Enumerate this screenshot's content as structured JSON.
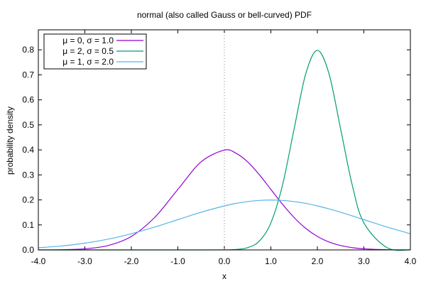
{
  "chart_data": {
    "type": "line",
    "title": "normal (also called Gauss or bell-curved) PDF",
    "xlabel": "x",
    "ylabel": "probability density",
    "xlim": [
      -4.0,
      4.0
    ],
    "ylim": [
      0.0,
      0.88
    ],
    "xticks": [
      -4.0,
      -3.0,
      -2.0,
      -1.0,
      0.0,
      1.0,
      2.0,
      3.0,
      4.0
    ],
    "xtick_labels": [
      "-4.0",
      "-3.0",
      "-2.0",
      "-1.0",
      "0.0",
      "1.0",
      "2.0",
      "3.0",
      "4.0"
    ],
    "yticks": [
      0.0,
      0.1,
      0.2,
      0.3,
      0.4,
      0.5,
      0.6,
      0.7,
      0.8
    ],
    "ytick_labels": [
      "0.0",
      "0.1",
      "0.2",
      "0.3",
      "0.4",
      "0.5",
      "0.6",
      "0.7",
      "0.8"
    ],
    "grid": false,
    "legend_position": "top-left",
    "reference_line": {
      "x": 0.0,
      "style": "dotted"
    },
    "x": [
      -4.0,
      -3.5,
      -3.0,
      -2.5,
      -2.0,
      -1.5,
      -1.0,
      -0.5,
      0.0,
      0.25,
      0.5,
      0.75,
      1.0,
      1.25,
      1.5,
      1.75,
      2.0,
      2.25,
      2.5,
      2.75,
      3.0,
      3.5,
      4.0
    ],
    "series": [
      {
        "name": "μ = 0, σ = 1.0",
        "color": "#9400d3",
        "values": [
          0.0001,
          0.0009,
          0.0044,
          0.0175,
          0.054,
          0.1295,
          0.242,
          0.3521,
          0.3989,
          0.3867,
          0.3521,
          0.3011,
          0.242,
          0.1826,
          0.1295,
          0.0863,
          0.054,
          0.0317,
          0.0175,
          0.0091,
          0.0044,
          0.0009,
          0.0001
        ]
      },
      {
        "name": "μ = 2, σ = 0.5",
        "color": "#009e73",
        "values": [
          0.0,
          0.0,
          0.0,
          0.0,
          0.0,
          0.0,
          0.0,
          0.0,
          0.0003,
          0.0017,
          0.0089,
          0.035,
          0.108,
          0.259,
          0.4839,
          0.7041,
          0.7979,
          0.7041,
          0.4839,
          0.259,
          0.108,
          0.0089,
          0.0003
        ]
      },
      {
        "name": "μ = 1, σ = 2.0",
        "color": "#56b4e9",
        "values": [
          0.0088,
          0.0158,
          0.027,
          0.0431,
          0.0648,
          0.0913,
          0.121,
          0.1506,
          0.176,
          0.1862,
          0.1933,
          0.1979,
          0.1995,
          0.1979,
          0.1933,
          0.1862,
          0.176,
          0.1641,
          0.1506,
          0.1361,
          0.121,
          0.0913,
          0.0648
        ]
      }
    ]
  }
}
